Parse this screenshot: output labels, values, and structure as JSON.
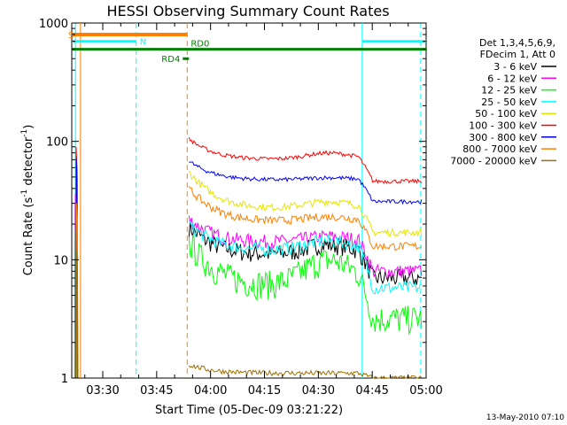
{
  "chart_data": {
    "type": "line",
    "title": "HESSI Observing Summary Count Rates",
    "xlabel": "Start Time (05-Dec-09 03:21:22)",
    "ylabel_main": "Count Rate (s",
    "ylabel_sup1": "-1",
    "ylabel_mid": " detector",
    "ylabel_sup2": "-1",
    "ylabel_end": ")",
    "yscale": "log",
    "ylim": [
      1,
      1000
    ],
    "xlim": [
      "03:21:22",
      "05:00:00"
    ],
    "x_tick_labels": [
      "03:30",
      "03:45",
      "04:00",
      "04:15",
      "04:30",
      "04:45",
      "05:00"
    ],
    "y_tick_labels": [
      "1",
      "10",
      "100",
      "1000"
    ],
    "footer_date": "13-May-2010 07:10",
    "legend_header": [
      "Det 1,3,4,5,6,9,",
      "FDecim 1, Att 0"
    ],
    "series": [
      {
        "name": "3 - 6 keV",
        "color": "#000000"
      },
      {
        "name": "6 - 12 keV",
        "color": "#ff00ff"
      },
      {
        "name": "12 - 25 keV",
        "color": "#00ff00"
      },
      {
        "name": "25 - 50 keV",
        "color": "#00ffff"
      },
      {
        "name": "50 - 100 keV",
        "color": "#e6e600"
      },
      {
        "name": "100 - 300 keV",
        "color": "#ff0000"
      },
      {
        "name": "300 - 800 keV",
        "color": "#0000ff"
      },
      {
        "name": "800 - 7000 keV",
        "color": "#ff8000"
      },
      {
        "name": "7000 - 20000 keV",
        "color": "#a07000"
      }
    ],
    "flag_labels": {
      "saa": "S",
      "night": "N",
      "rd0": "RD0",
      "rd4": "RD4"
    },
    "colors": {
      "saa_bar": "#ff8000",
      "night_bar": "#00ffff",
      "decimation_bar": "#008000"
    }
  }
}
